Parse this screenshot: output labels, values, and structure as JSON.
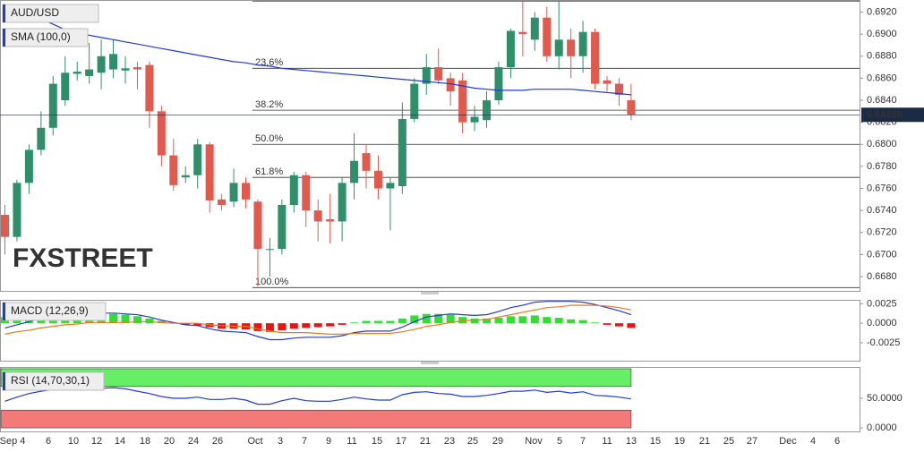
{
  "chart_data": [
    {
      "type": "candlestick",
      "title": "AUD/USD",
      "watermark": "FXSTREET",
      "up_color": "#2f8f6b",
      "down_color": "#e05a4e",
      "open": [
        0.6736,
        0.6716,
        0.6765,
        0.6795,
        0.6815,
        0.684,
        0.6864,
        0.6862,
        0.6865,
        0.6868,
        0.6867,
        0.687,
        0.6872,
        0.683,
        0.679,
        0.677,
        0.6772,
        0.68,
        0.675,
        0.6748,
        0.6765,
        0.6748,
        0.6705,
        0.6705,
        0.6745,
        0.6772,
        0.674,
        0.6732,
        0.673,
        0.6765,
        0.6792,
        0.6776,
        0.676,
        0.6762,
        0.6823,
        0.6855,
        0.687,
        0.686,
        0.6858,
        0.682,
        0.6822,
        0.684,
        0.687,
        0.6902,
        0.6895,
        0.6915,
        0.688,
        0.6895,
        0.688,
        0.6902,
        0.6858,
        0.6855,
        0.684
      ],
      "high": [
        0.6745,
        0.6768,
        0.68,
        0.683,
        0.6862,
        0.688,
        0.6875,
        0.6892,
        0.6895,
        0.6895,
        0.688,
        0.6875,
        0.6875,
        0.6835,
        0.6805,
        0.678,
        0.6805,
        0.6802,
        0.6755,
        0.6778,
        0.677,
        0.675,
        0.6715,
        0.675,
        0.6775,
        0.6775,
        0.675,
        0.6755,
        0.677,
        0.681,
        0.68,
        0.679,
        0.677,
        0.6838,
        0.686,
        0.6882,
        0.6887,
        0.6865,
        0.6865,
        0.6835,
        0.6848,
        0.6875,
        0.6905,
        0.693,
        0.692,
        0.6925,
        0.693,
        0.6905,
        0.6912,
        0.6905,
        0.6862,
        0.686,
        0.6855
      ],
      "low": [
        0.67,
        0.6712,
        0.6755,
        0.679,
        0.6808,
        0.6835,
        0.6858,
        0.6855,
        0.685,
        0.686,
        0.6855,
        0.685,
        0.6815,
        0.678,
        0.6758,
        0.6765,
        0.676,
        0.6738,
        0.674,
        0.6743,
        0.6742,
        0.6671,
        0.668,
        0.67,
        0.6738,
        0.6725,
        0.6712,
        0.671,
        0.6712,
        0.675,
        0.676,
        0.675,
        0.6722,
        0.6755,
        0.682,
        0.6845,
        0.6855,
        0.6835,
        0.681,
        0.6812,
        0.6815,
        0.6836,
        0.686,
        0.688,
        0.6885,
        0.6875,
        0.6868,
        0.686,
        0.6865,
        0.685,
        0.6848,
        0.6835,
        0.6822
      ],
      "close": [
        0.6716,
        0.6765,
        0.6795,
        0.6815,
        0.6855,
        0.6865,
        0.6866,
        0.6868,
        0.688,
        0.6882,
        0.6869,
        0.6868,
        0.683,
        0.679,
        0.6763,
        0.6772,
        0.68,
        0.6749,
        0.6745,
        0.6765,
        0.675,
        0.6705,
        0.6705,
        0.6745,
        0.6772,
        0.674,
        0.673,
        0.673,
        0.6765,
        0.6785,
        0.6776,
        0.676,
        0.6765,
        0.6823,
        0.6855,
        0.687,
        0.6858,
        0.6848,
        0.682,
        0.6825,
        0.684,
        0.687,
        0.6903,
        0.69,
        0.6915,
        0.688,
        0.6895,
        0.688,
        0.6902,
        0.6855,
        0.6855,
        0.6845,
        0.68268
      ],
      "series": [
        {
          "name": "SMA (100,0)",
          "color": "#1f3bd6",
          "values": [
            0.6927,
            0.6924,
            0.6919,
            0.6914,
            0.6909,
            0.6904,
            0.6901,
            0.6899,
            0.6897,
            0.6895,
            0.6893,
            0.6891,
            0.6889,
            0.6887,
            0.6885,
            0.6883,
            0.6881,
            0.6879,
            0.6877,
            0.6875,
            0.6874,
            0.6872,
            0.6871,
            0.6869,
            0.6868,
            0.6867,
            0.6866,
            0.6865,
            0.6864,
            0.6863,
            0.6862,
            0.6861,
            0.686,
            0.6859,
            0.6858,
            0.6857,
            0.6856,
            0.6855,
            0.6853,
            0.6851,
            0.685,
            0.6849,
            0.6849,
            0.6849,
            0.685,
            0.685,
            0.685,
            0.685,
            0.6849,
            0.6848,
            0.6847,
            0.6846,
            0.6845
          ]
        }
      ],
      "ylim": [
        0.6667,
        0.6931
      ],
      "yticks": [
        {
          "value": 0.692,
          "label": "0.6920"
        },
        {
          "value": 0.69,
          "label": "0.6900"
        },
        {
          "value": 0.688,
          "label": "0.6880"
        },
        {
          "value": 0.686,
          "label": "0.6860"
        },
        {
          "value": 0.684,
          "label": "0.6840"
        },
        {
          "value": 0.682,
          "label": "0.6820"
        },
        {
          "value": 0.68,
          "label": "0.6800"
        },
        {
          "value": 0.678,
          "label": "0.6780"
        },
        {
          "value": 0.676,
          "label": "0.6760"
        },
        {
          "value": 0.674,
          "label": "0.6740"
        },
        {
          "value": 0.672,
          "label": "0.6720"
        },
        {
          "value": 0.67,
          "label": "0.6700"
        },
        {
          "value": 0.668,
          "label": "0.6680"
        }
      ],
      "fib_levels": [
        {
          "name": null,
          "price": 0.693
        },
        {
          "name": "23.6%",
          "price": 0.6869
        },
        {
          "name": "38.2%",
          "price": 0.6831
        },
        {
          "name": "50.0%",
          "price": 0.68
        },
        {
          "name": "61.8%",
          "price": 0.677
        },
        {
          "name": "100.0%",
          "price": 0.667
        }
      ],
      "last_price": 0.68268,
      "xlabels": [
        "Sep 4",
        "6",
        "10",
        "12",
        "14",
        "18",
        "20",
        "24",
        "26",
        "Oct",
        "3",
        "7",
        "9",
        "11",
        "15",
        "17",
        "21",
        "23",
        "25",
        "29",
        "Nov",
        "5",
        "7",
        "11",
        "13",
        "15",
        "19",
        "21",
        "25",
        "27",
        "Dec",
        "4",
        "6"
      ]
    },
    {
      "type": "macd",
      "title": "MACD (12,26,9)",
      "up_color": "#33dd33",
      "down_color": "#ee1111",
      "histogram": [
        0.0008,
        0.0009,
        0.0011,
        0.0012,
        0.0013,
        0.0013,
        0.0013,
        0.0012,
        0.0012,
        0.0012,
        0.0011,
        0.0009,
        0.0006,
        0.0003,
        0.0001,
        -0.0002,
        -0.0003,
        -0.0005,
        -0.0007,
        -0.0007,
        -0.0008,
        -0.001,
        -0.0011,
        -0.0009,
        -0.0007,
        -0.0006,
        -0.0005,
        -0.0004,
        -0.0002,
        0.0001,
        0.0003,
        0.0003,
        0.0003,
        0.0006,
        0.001,
        0.0012,
        0.0012,
        0.0011,
        0.0008,
        0.0006,
        0.0006,
        0.0007,
        0.0009,
        0.0009,
        0.001,
        0.0008,
        0.0007,
        0.0005,
        0.0004,
        0.0001,
        -0.0002,
        -0.0004,
        -0.0006
      ],
      "series": [
        {
          "color": "#1f3bd6",
          "values": [
            -0.0006,
            -0.0002,
            0.0002,
            0.0006,
            0.0009,
            0.0011,
            0.0012,
            0.0013,
            0.0013,
            0.0013,
            0.0012,
            0.0011,
            0.0008,
            0.0004,
            0.0001,
            -0.0002,
            -0.0003,
            -0.0007,
            -0.001,
            -0.0011,
            -0.0012,
            -0.0017,
            -0.0021,
            -0.0021,
            -0.0019,
            -0.0018,
            -0.0018,
            -0.0018,
            -0.0016,
            -0.0012,
            -0.001,
            -0.001,
            -0.001,
            -0.0005,
            0.0002,
            0.0008,
            0.001,
            0.0012,
            0.0011,
            0.001,
            0.0011,
            0.0015,
            0.002,
            0.0023,
            0.0027,
            0.0028,
            0.0028,
            0.0028,
            0.0027,
            0.0024,
            0.002,
            0.0016,
            0.0011
          ]
        },
        {
          "color": "#f07a1a",
          "values": [
            -0.0014,
            -0.0011,
            -0.0009,
            -0.0006,
            -0.0004,
            -0.0002,
            -0.0001,
            0.0001,
            0.0001,
            0.0001,
            0.0001,
            0.0002,
            0.0002,
            0.0001,
            0,
            0,
            0,
            -0.0002,
            -0.0003,
            -0.0004,
            -0.0004,
            -0.0007,
            -0.001,
            -0.0012,
            -0.0012,
            -0.0012,
            -0.0013,
            -0.0014,
            -0.0014,
            -0.0013,
            -0.0013,
            -0.0013,
            -0.0013,
            -0.0011,
            -0.0008,
            -0.0004,
            -0.0002,
            0.0001,
            0.0003,
            0.0004,
            0.0005,
            0.0008,
            0.0011,
            0.0014,
            0.0017,
            0.002,
            0.0021,
            0.0023,
            0.0023,
            0.0023,
            0.0022,
            0.002,
            0.0017
          ]
        }
      ],
      "ylim": [
        -0.0048,
        0.003
      ],
      "yticks": [
        {
          "value": 0.0025,
          "label": "0.0025"
        },
        {
          "value": 0,
          "label": "0.0000"
        },
        {
          "value": -0.0025,
          "label": "-0.0025"
        }
      ]
    },
    {
      "type": "rsi",
      "title": "RSI (14,70,30,1)",
      "color": "#1f3bd6",
      "overbought": 70,
      "oversold": 30,
      "overbought_color": "#66ee66",
      "oversold_color": "#f47a7a",
      "values": [
        45,
        52,
        58,
        62,
        65,
        66,
        66,
        67,
        67,
        68,
        66,
        62,
        58,
        53,
        50,
        50,
        52,
        48,
        48,
        50,
        47,
        40,
        40,
        46,
        50,
        46,
        45,
        45,
        48,
        52,
        49,
        47,
        47,
        56,
        60,
        61,
        58,
        57,
        53,
        53,
        55,
        58,
        62,
        62,
        64,
        60,
        62,
        59,
        61,
        55,
        54,
        52,
        49
      ],
      "ylim": [
        -6,
        103
      ],
      "yticks": [
        {
          "value": 50,
          "label": "50.0000"
        },
        {
          "value": 0,
          "label": "0.0000"
        }
      ]
    }
  ]
}
